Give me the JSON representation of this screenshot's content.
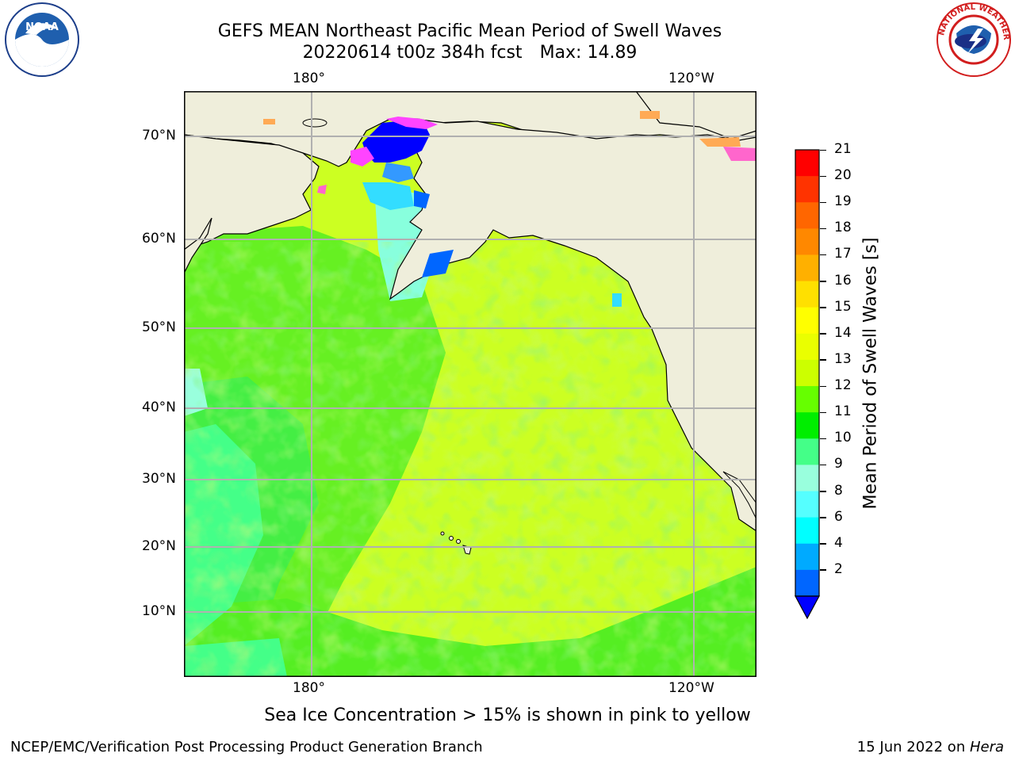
{
  "title_line1": "GEFS MEAN Northeast Pacific Mean Period of Swell Waves",
  "title_line2_left": "20220614 t00z 384h fcst",
  "title_line2_right": "Max: 14.89",
  "logos": {
    "left": "noaa-logo",
    "right": "national-weather-service-logo",
    "left_text": "NOAA",
    "right_text": "NATIONAL WEATHER SERVICE"
  },
  "lon_labels": [
    "180°",
    "120°W"
  ],
  "lat_labels": [
    "70°N",
    "60°N",
    "50°N",
    "40°N",
    "30°N",
    "20°N",
    "10°N"
  ],
  "colorbar": {
    "label": "Mean Period of Swell Waves [s]",
    "ticks": [
      "21",
      "20",
      "19",
      "18",
      "17",
      "16",
      "15",
      "14",
      "13",
      "12",
      "11",
      "10",
      "9",
      "8",
      "6",
      "4",
      "2"
    ],
    "colors": [
      "#ff0000",
      "#ff3300",
      "#ff6600",
      "#ff8800",
      "#ffb000",
      "#ffe000",
      "#ffff00",
      "#eaff00",
      "#ccff00",
      "#66ff00",
      "#00ee00",
      "#44ff88",
      "#99ffdd",
      "#55ffff",
      "#00ffff",
      "#00aaff",
      "#0066ff"
    ],
    "extend_color": "#0000ff"
  },
  "map": {
    "land_color": "#efeedb",
    "ocean_colors": [
      "#88ff33",
      "#44ee22",
      "#ccff22",
      "#bbff33",
      "#44ff88",
      "#aaff44"
    ],
    "ice_colors": [
      "#ff66cc",
      "#ffaa55",
      "#ff44ff",
      "#0000ff",
      "#33ddff"
    ]
  },
  "bottom_note": "Sea Ice Concentration > 15% is shown in pink to yellow",
  "footer_left": "NCEP/EMC/Verification Post Processing Product Generation Branch",
  "footer_date": "15 Jun 2022 on ",
  "footer_host": "Hera"
}
